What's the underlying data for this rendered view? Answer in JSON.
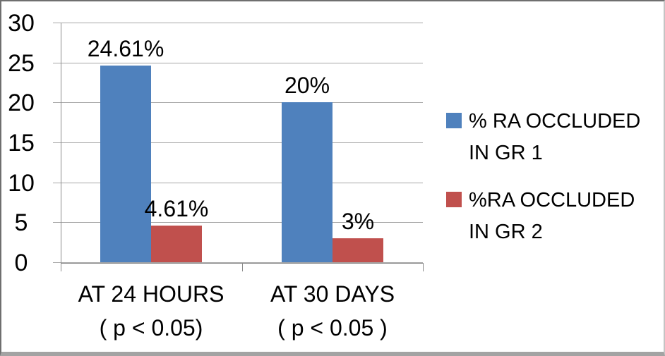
{
  "chart_data": {
    "type": "bar",
    "categories": [
      {
        "lines": [
          "AT 24 HOURS",
          "( p < 0.05)"
        ]
      },
      {
        "lines": [
          "AT 30 DAYS",
          "( p < 0.05 )"
        ]
      }
    ],
    "series": [
      {
        "name": "% RA OCCLUDED IN GR 1",
        "color": "#4F81BD",
        "values": [
          24.61,
          20
        ],
        "value_labels": [
          "24.61%",
          "20%"
        ]
      },
      {
        "name": "%RA OCCLUDED IN GR 2",
        "color": "#C0504D",
        "values": [
          4.61,
          3
        ],
        "value_labels": [
          "4.61%",
          "3%"
        ]
      }
    ],
    "ylim": [
      0,
      30
    ],
    "yticks": [
      0,
      5,
      10,
      15,
      20,
      25,
      30
    ],
    "grid": true,
    "legend_position": "right",
    "xlabel": "",
    "ylabel": ""
  },
  "colors": {
    "series_gr1": "#4F81BD",
    "series_gr2": "#C0504D",
    "gridline": "#A6A6A6",
    "axis": "#8A8A8A",
    "text": "#000000",
    "frame_border": "#6F6F6F"
  }
}
